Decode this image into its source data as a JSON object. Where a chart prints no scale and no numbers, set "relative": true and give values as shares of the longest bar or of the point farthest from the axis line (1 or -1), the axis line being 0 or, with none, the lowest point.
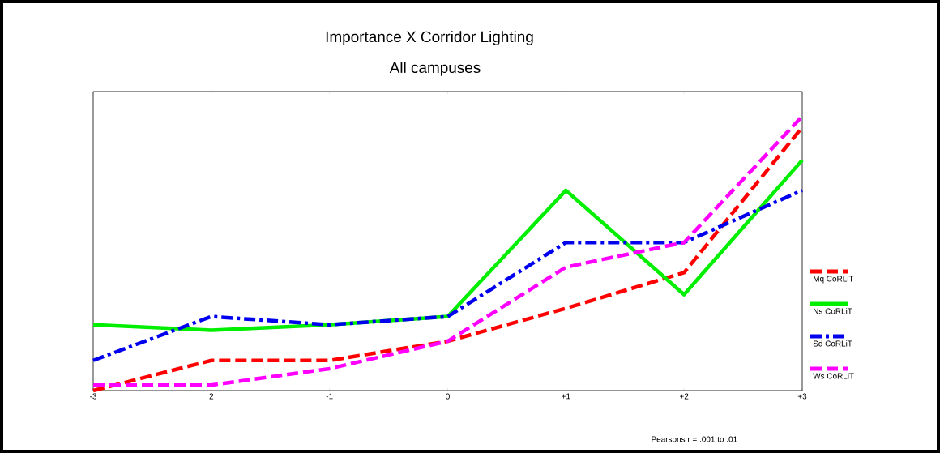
{
  "chart_data": {
    "type": "line",
    "title": "Importance X Corridor Lighting",
    "subtitle": "All campuses",
    "relative": true,
    "categories": [
      "-3",
      "2",
      "-1",
      "0",
      "+1",
      "+2",
      "+3"
    ],
    "series": [
      {
        "name": "Mq CoRLiT",
        "color": "#ff0000",
        "line_style": "dashed",
        "values": [
          0,
          0.11,
          0.11,
          0.18,
          0.3,
          0.43,
          0.96
        ]
      },
      {
        "name": "Ns CoRLiT",
        "color": "#00ee00",
        "line_style": "solid",
        "values": [
          0.24,
          0.22,
          0.24,
          0.27,
          0.73,
          0.35,
          0.84
        ]
      },
      {
        "name": "Sd CoRLiT",
        "color": "#0000ee",
        "line_style": "dashdot",
        "values": [
          0.11,
          0.27,
          0.24,
          0.27,
          0.54,
          0.54,
          0.73
        ]
      },
      {
        "name": "Ws CoRLiT",
        "color": "#ff00ff",
        "line_style": "dashed",
        "values": [
          0.02,
          0.02,
          0.08,
          0.18,
          0.45,
          0.54,
          1
        ]
      }
    ],
    "legend": "right",
    "grid": false,
    "marker": "none",
    "annotations": [
      "Pearsons r = .001 to .01"
    ]
  }
}
